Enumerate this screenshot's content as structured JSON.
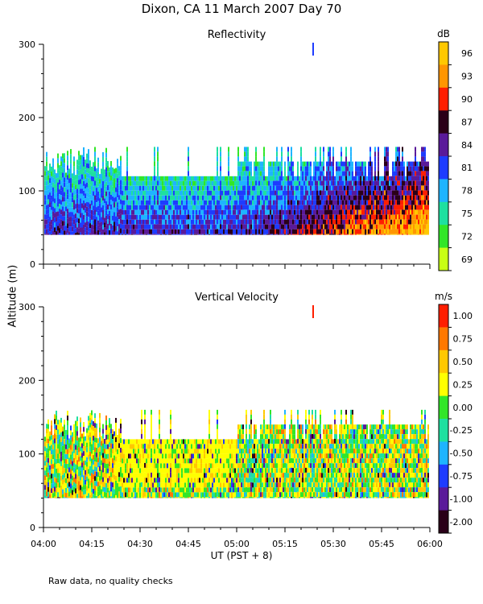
{
  "figure": {
    "title": "Dixon, CA 11 March 2007  Day  70",
    "ylabel": "Altitude (m)",
    "xlabel": "UT   (PST + 8)",
    "footnote": "Raw data, no quality checks"
  },
  "chart_data": [
    {
      "type": "heatmap",
      "title": "Reflectivity",
      "unit_label": "dB",
      "x_ticks": [
        "04:00",
        "04:15",
        "04:30",
        "04:45",
        "05:00",
        "05:15",
        "05:30",
        "05:45",
        "06:00"
      ],
      "x_range_minutes": [
        0,
        120
      ],
      "ylim": [
        0,
        300
      ],
      "y_ticks": [
        0,
        100,
        200,
        300
      ],
      "data_altitude_range": [
        40,
        160
      ],
      "colorbar_ticks": [
        "96",
        "93",
        "90",
        "87",
        "84",
        "81",
        "78",
        "75",
        "72",
        "69"
      ],
      "colorbar_colors": [
        "#ffc800",
        "#ff9600",
        "#ff1e00",
        "#2a0018",
        "#5a1a9a",
        "#1e3cff",
        "#1eb4ff",
        "#1ee0a0",
        "#32e628",
        "#c8ff14"
      ],
      "description": "Vertically pointing radar reflectivity; mostly blue/cyan 78-84 dB early, rising to red/orange 87-93 dB after 05:10 UT"
    },
    {
      "type": "heatmap",
      "title": "Vertical Velocity",
      "unit_label": "m/s",
      "x_ticks": [
        "04:00",
        "04:15",
        "04:30",
        "04:45",
        "05:00",
        "05:15",
        "05:30",
        "05:45",
        "06:00"
      ],
      "x_range_minutes": [
        0,
        120
      ],
      "ylim": [
        0,
        300
      ],
      "y_ticks": [
        0,
        100,
        200,
        300
      ],
      "data_altitude_range": [
        40,
        160
      ],
      "colorbar_ticks": [
        "1.00",
        "0.75",
        "0.50",
        "0.25",
        "0.00",
        "-0.25",
        "-0.50",
        "-0.75",
        "-1.00",
        "-2.00"
      ],
      "colorbar_colors": [
        "#ff1e00",
        "#ff7800",
        "#ffc800",
        "#ffff00",
        "#32e628",
        "#1ee0a0",
        "#1eb4ff",
        "#1e3cff",
        "#5a1a9a",
        "#2a0018"
      ],
      "description": "Vertical velocity mostly yellow/green (0 to 0.5 m/s) with interspersed blue/purple downward motion"
    }
  ]
}
